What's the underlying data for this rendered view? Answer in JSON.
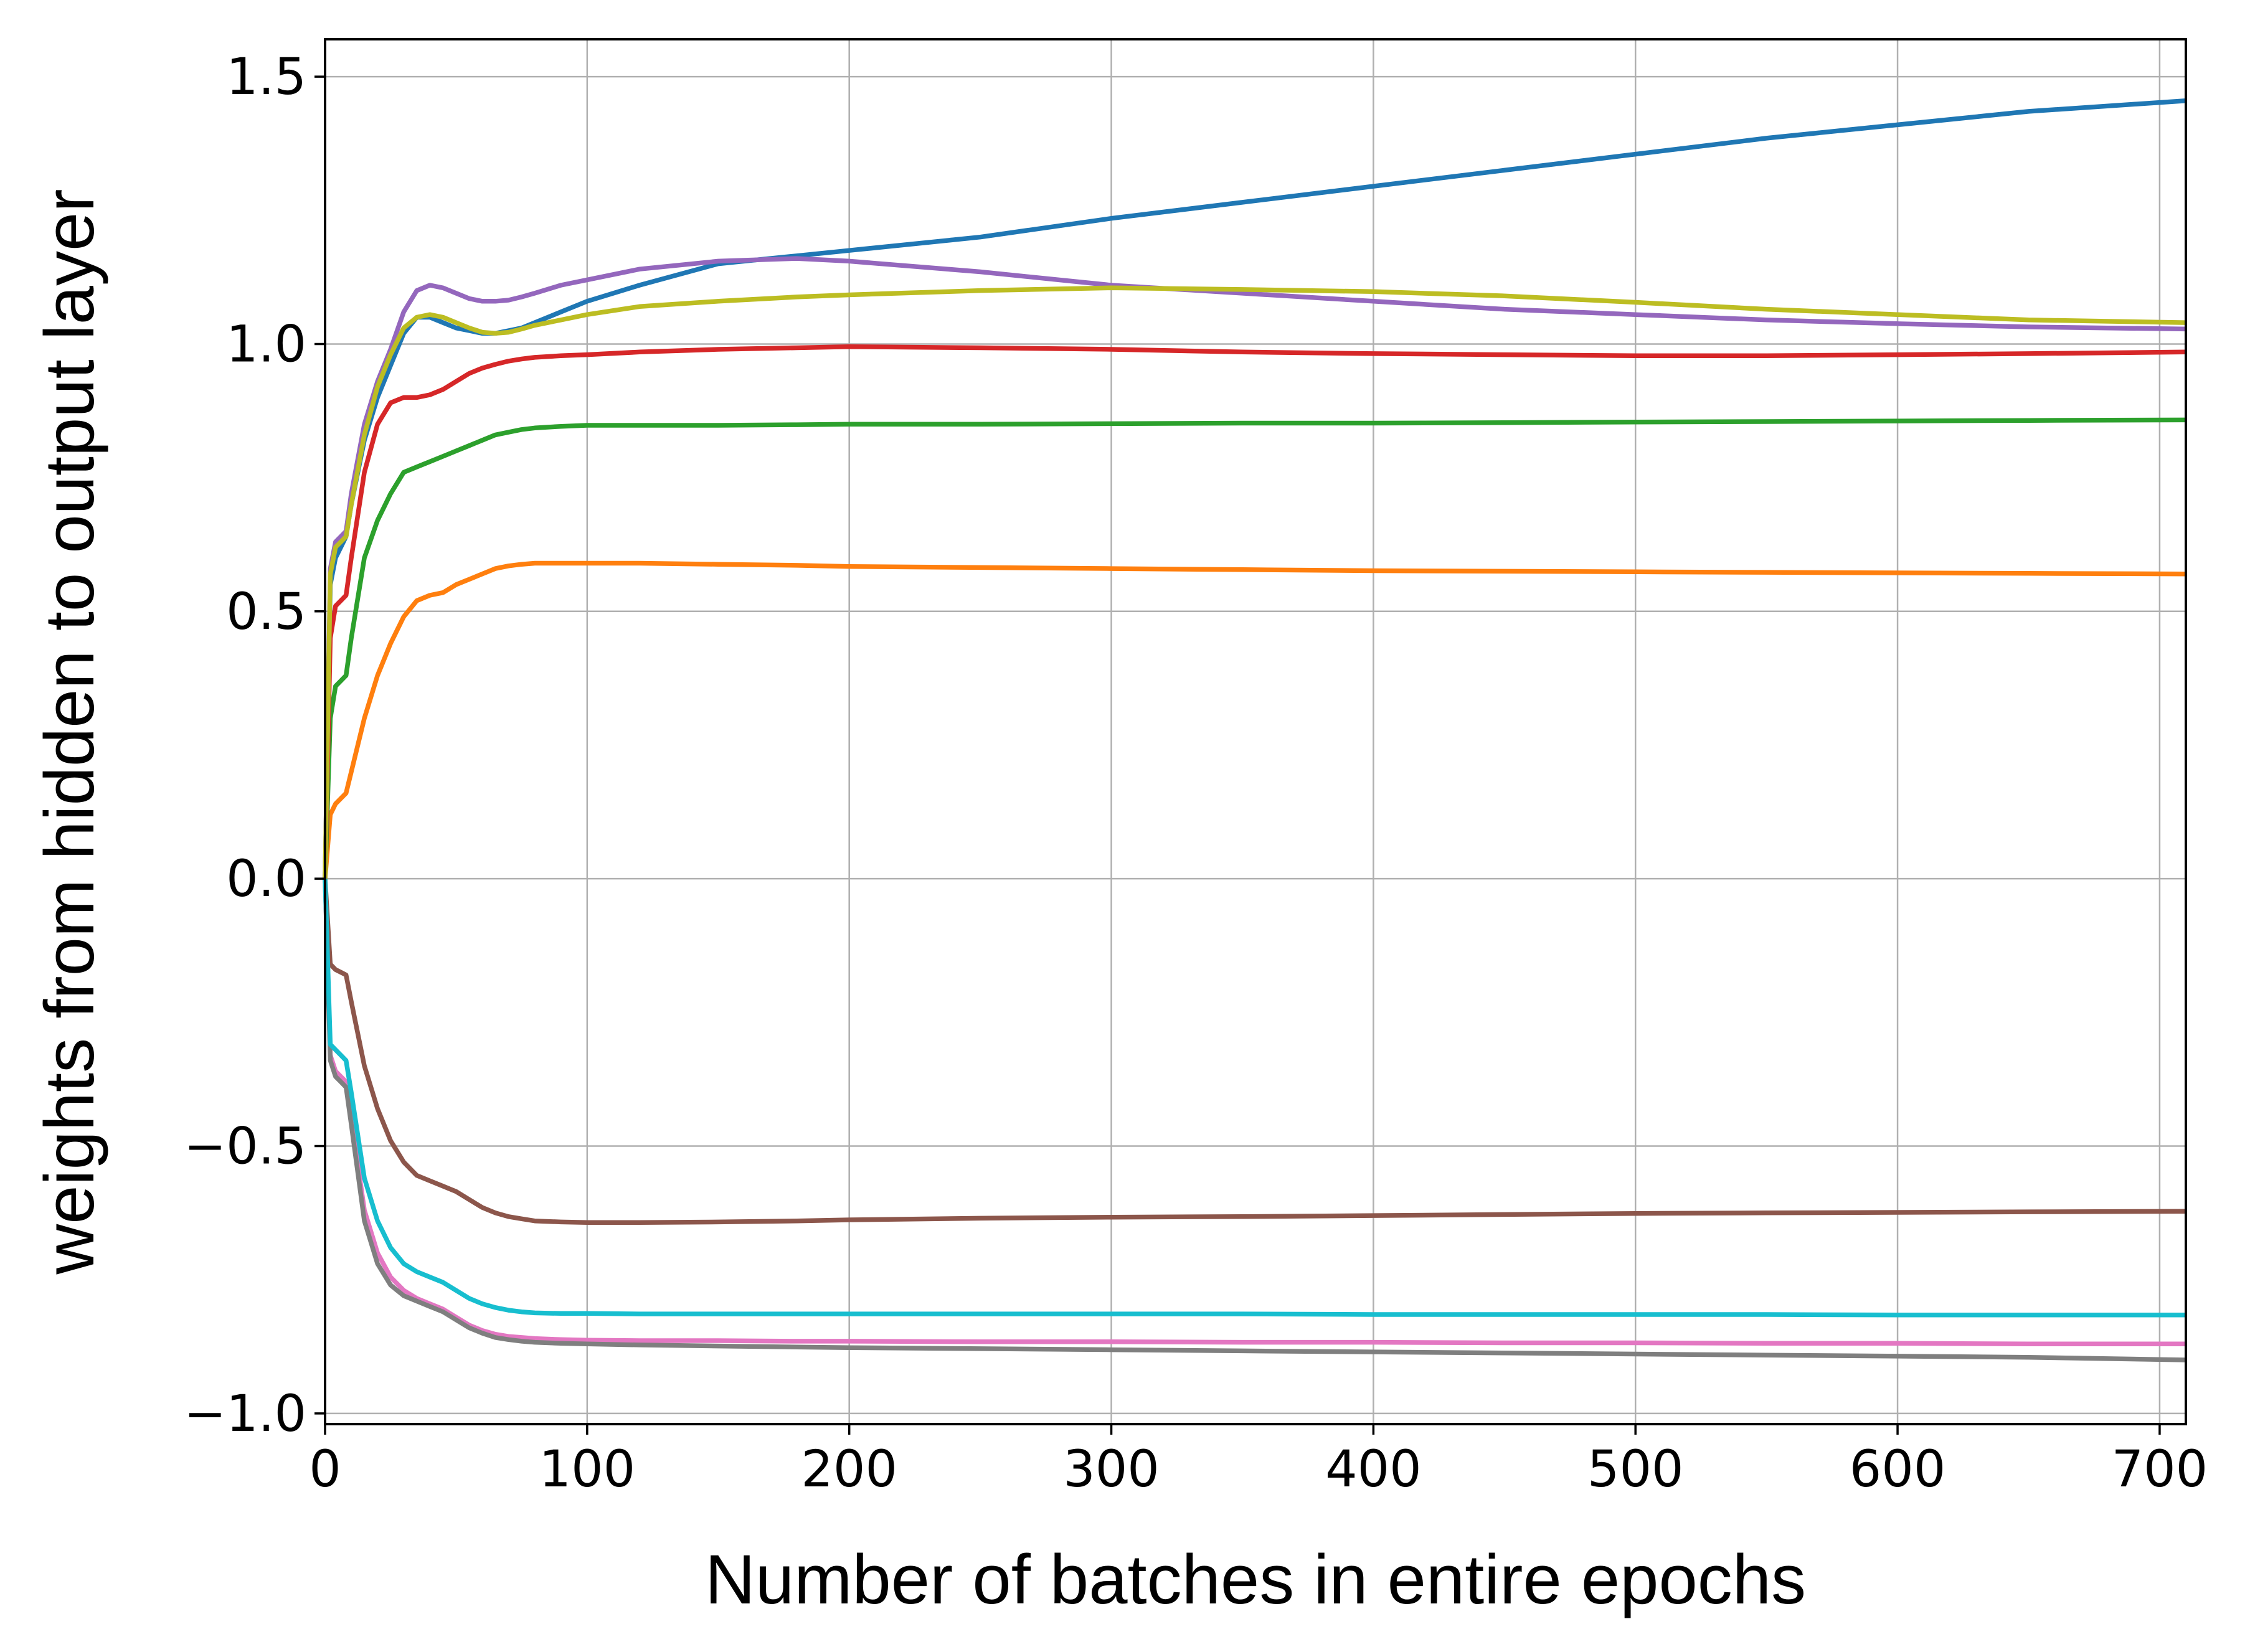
{
  "chart_data": {
    "type": "line",
    "title": "",
    "xlabel": "Number of batches in entire epochs",
    "ylabel": "weights from hidden to output layer",
    "xlim": [
      0,
      710
    ],
    "ylim": [
      -1.02,
      1.57
    ],
    "grid": true,
    "legend": "none",
    "x_ticks": [
      0,
      100,
      200,
      300,
      400,
      500,
      600,
      700
    ],
    "x_tick_labels": [
      "0",
      "100",
      "200",
      "300",
      "400",
      "500",
      "600",
      "700"
    ],
    "y_ticks": [
      1.5,
      1.0,
      0.5,
      0.0,
      -0.5,
      -1.0
    ],
    "y_tick_labels": [
      "1.5",
      "1.0",
      "0.5",
      "0.0",
      "−0.5",
      "−1.0"
    ],
    "x": [
      0,
      2,
      4,
      6,
      8,
      10,
      15,
      20,
      25,
      30,
      35,
      40,
      45,
      50,
      55,
      60,
      65,
      70,
      75,
      80,
      90,
      100,
      120,
      150,
      180,
      200,
      250,
      300,
      350,
      400,
      450,
      500,
      550,
      600,
      650,
      710
    ],
    "series": [
      {
        "color": "#1f77b4",
        "values": [
          0.0,
          0.55,
          0.6,
          0.62,
          0.64,
          0.7,
          0.82,
          0.9,
          0.96,
          1.02,
          1.05,
          1.05,
          1.04,
          1.03,
          1.025,
          1.02,
          1.02,
          1.025,
          1.03,
          1.04,
          1.06,
          1.08,
          1.11,
          1.15,
          1.165,
          1.175,
          1.2,
          1.235,
          1.265,
          1.295,
          1.325,
          1.355,
          1.385,
          1.41,
          1.435,
          1.455
        ]
      },
      {
        "color": "#ff7f0e",
        "values": [
          0.0,
          0.12,
          0.14,
          0.15,
          0.16,
          0.2,
          0.3,
          0.38,
          0.44,
          0.49,
          0.52,
          0.53,
          0.535,
          0.55,
          0.56,
          0.57,
          0.58,
          0.585,
          0.588,
          0.59,
          0.59,
          0.59,
          0.59,
          0.588,
          0.586,
          0.584,
          0.582,
          0.58,
          0.578,
          0.576,
          0.575,
          0.574,
          0.573,
          0.572,
          0.571,
          0.57
        ]
      },
      {
        "color": "#2ca02c",
        "values": [
          0.0,
          0.3,
          0.36,
          0.37,
          0.38,
          0.45,
          0.6,
          0.67,
          0.72,
          0.76,
          0.77,
          0.78,
          0.79,
          0.8,
          0.81,
          0.82,
          0.83,
          0.835,
          0.84,
          0.843,
          0.846,
          0.848,
          0.848,
          0.848,
          0.849,
          0.85,
          0.85,
          0.851,
          0.852,
          0.852,
          0.853,
          0.854,
          0.855,
          0.856,
          0.857,
          0.858
        ]
      },
      {
        "color": "#d62728",
        "values": [
          0.0,
          0.45,
          0.51,
          0.52,
          0.53,
          0.6,
          0.76,
          0.85,
          0.89,
          0.9,
          0.9,
          0.905,
          0.915,
          0.93,
          0.945,
          0.955,
          0.962,
          0.968,
          0.972,
          0.975,
          0.978,
          0.98,
          0.985,
          0.99,
          0.993,
          0.995,
          0.993,
          0.99,
          0.985,
          0.982,
          0.98,
          0.978,
          0.978,
          0.98,
          0.982,
          0.985
        ]
      },
      {
        "color": "#9467bd",
        "values": [
          0.0,
          0.58,
          0.63,
          0.64,
          0.65,
          0.72,
          0.85,
          0.93,
          0.99,
          1.06,
          1.1,
          1.11,
          1.105,
          1.095,
          1.085,
          1.08,
          1.08,
          1.082,
          1.088,
          1.095,
          1.11,
          1.12,
          1.14,
          1.155,
          1.16,
          1.155,
          1.135,
          1.11,
          1.095,
          1.08,
          1.065,
          1.055,
          1.045,
          1.038,
          1.032,
          1.028
        ]
      },
      {
        "color": "#8c564b",
        "values": [
          0.0,
          -0.16,
          -0.17,
          -0.175,
          -0.18,
          -0.23,
          -0.35,
          -0.43,
          -0.49,
          -0.53,
          -0.555,
          -0.565,
          -0.575,
          -0.585,
          -0.6,
          -0.615,
          -0.625,
          -0.632,
          -0.636,
          -0.64,
          -0.642,
          -0.643,
          -0.643,
          -0.642,
          -0.64,
          -0.638,
          -0.635,
          -0.633,
          -0.632,
          -0.63,
          -0.628,
          -0.626,
          -0.625,
          -0.624,
          -0.623,
          -0.622
        ]
      },
      {
        "color": "#e377c2",
        "values": [
          0.0,
          -0.33,
          -0.36,
          -0.37,
          -0.38,
          -0.45,
          -0.62,
          -0.7,
          -0.745,
          -0.77,
          -0.785,
          -0.795,
          -0.805,
          -0.82,
          -0.835,
          -0.845,
          -0.852,
          -0.856,
          -0.858,
          -0.86,
          -0.862,
          -0.863,
          -0.864,
          -0.864,
          -0.865,
          -0.865,
          -0.866,
          -0.866,
          -0.867,
          -0.867,
          -0.868,
          -0.868,
          -0.869,
          -0.869,
          -0.87,
          -0.87
        ]
      },
      {
        "color": "#7f7f7f",
        "values": [
          0.0,
          -0.34,
          -0.37,
          -0.38,
          -0.39,
          -0.46,
          -0.64,
          -0.72,
          -0.76,
          -0.78,
          -0.79,
          -0.8,
          -0.81,
          -0.825,
          -0.84,
          -0.85,
          -0.858,
          -0.862,
          -0.865,
          -0.867,
          -0.869,
          -0.87,
          -0.872,
          -0.874,
          -0.876,
          -0.877,
          -0.879,
          -0.881,
          -0.883,
          -0.885,
          -0.887,
          -0.889,
          -0.891,
          -0.893,
          -0.895,
          -0.9
        ]
      },
      {
        "color": "#bcbd22",
        "values": [
          0.0,
          0.57,
          0.62,
          0.63,
          0.64,
          0.7,
          0.83,
          0.92,
          0.98,
          1.03,
          1.05,
          1.055,
          1.05,
          1.04,
          1.03,
          1.022,
          1.02,
          1.022,
          1.028,
          1.035,
          1.045,
          1.055,
          1.07,
          1.08,
          1.088,
          1.092,
          1.1,
          1.105,
          1.102,
          1.098,
          1.09,
          1.078,
          1.065,
          1.055,
          1.045,
          1.04
        ]
      },
      {
        "color": "#17becf",
        "values": [
          0.0,
          -0.31,
          -0.32,
          -0.33,
          -0.34,
          -0.4,
          -0.56,
          -0.64,
          -0.69,
          -0.72,
          -0.735,
          -0.745,
          -0.755,
          -0.77,
          -0.785,
          -0.795,
          -0.802,
          -0.807,
          -0.81,
          -0.812,
          -0.813,
          -0.813,
          -0.814,
          -0.814,
          -0.814,
          -0.814,
          -0.814,
          -0.814,
          -0.814,
          -0.815,
          -0.815,
          -0.815,
          -0.815,
          -0.816,
          -0.816,
          -0.816
        ]
      }
    ]
  }
}
